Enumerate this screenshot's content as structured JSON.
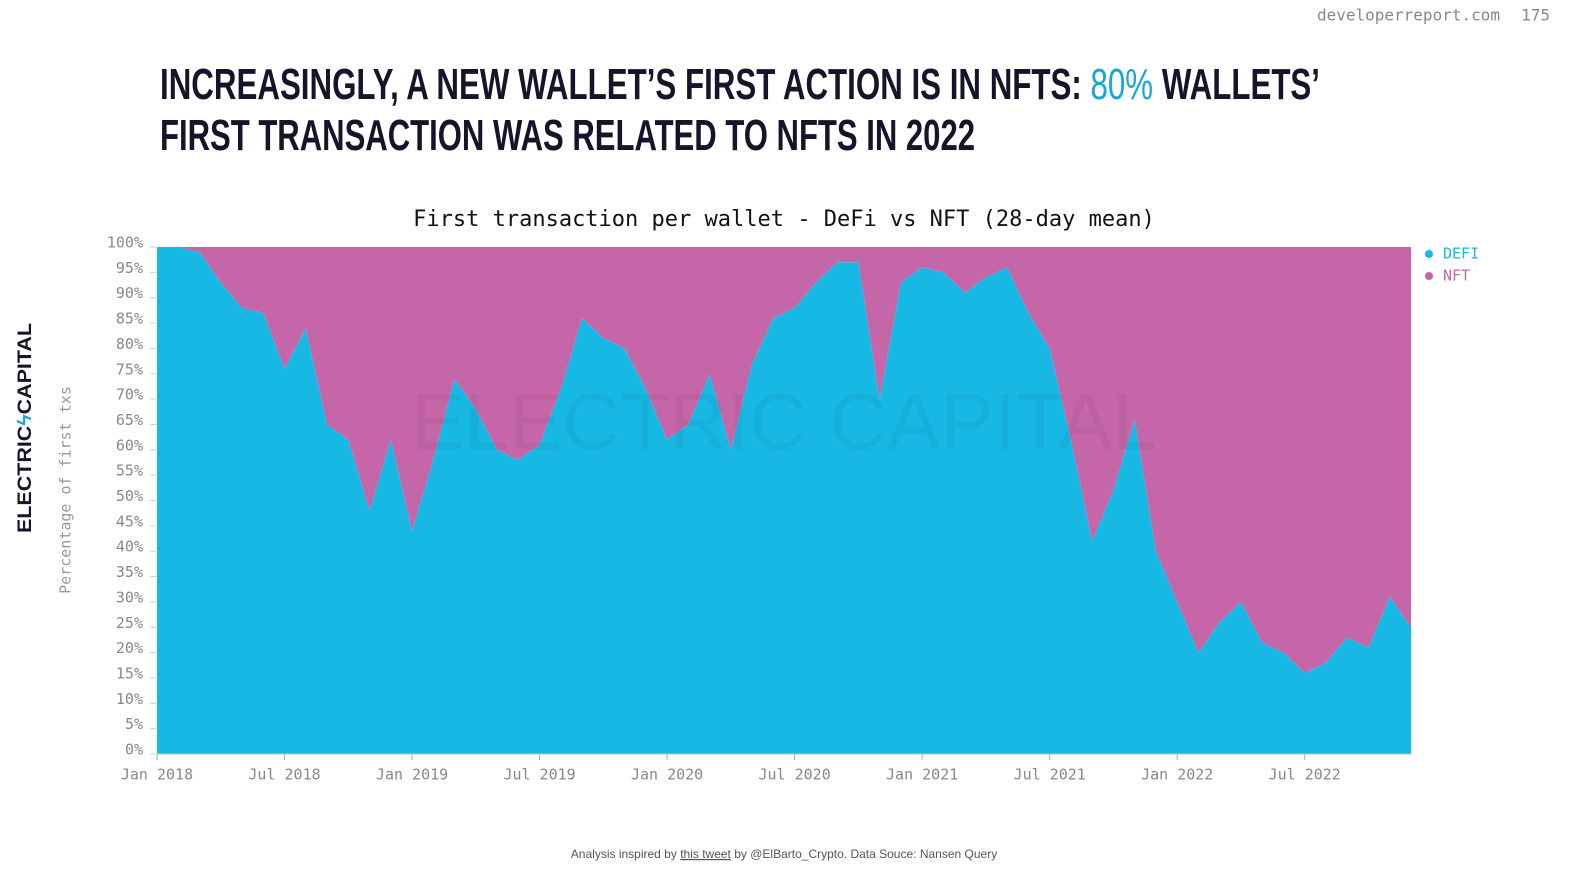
{
  "header": {
    "site": "developerreport.com",
    "page": "175"
  },
  "headline": {
    "line1": [
      "INCREASINGLY, A NEW WALLET’S FIRST ACTION IS IN NFTS: ",
      "80%",
      " WALLETS’"
    ],
    "line2": "FIRST TRANSACTION WAS RELATED TO NFTS IN 2022"
  },
  "logo": [
    "ELECTRIC",
    "CAPITAL"
  ],
  "watermark": "ELECTRIC CAPITAL",
  "footer": {
    "before": "Analysis inspired by ",
    "link": "this tweet",
    "after": " by @ElBarto_Crypto. Data Souce: Nansen Query"
  },
  "chart_data": {
    "type": "stacked_area",
    "title": "First transaction per wallet - DeFi vs NFT (28-day mean)",
    "y_label": "Percentage of first txs",
    "x": [
      "2018-01",
      "2018-02",
      "2018-03",
      "2018-04",
      "2018-05",
      "2018-06",
      "2018-07",
      "2018-08",
      "2018-09",
      "2018-10",
      "2018-11",
      "2018-12",
      "2019-01",
      "2019-02",
      "2019-03",
      "2019-04",
      "2019-05",
      "2019-06",
      "2019-07",
      "2019-08",
      "2019-09",
      "2019-10",
      "2019-11",
      "2019-12",
      "2020-01",
      "2020-02",
      "2020-03",
      "2020-04",
      "2020-05",
      "2020-06",
      "2020-07",
      "2020-08",
      "2020-09",
      "2020-10",
      "2020-11",
      "2020-12",
      "2021-01",
      "2021-02",
      "2021-03",
      "2021-04",
      "2021-05",
      "2021-06",
      "2021-07",
      "2021-08",
      "2021-09",
      "2021-10",
      "2021-11",
      "2021-12",
      "2022-01",
      "2022-02",
      "2022-03",
      "2022-04",
      "2022-05",
      "2022-06",
      "2022-07",
      "2022-08",
      "2022-09",
      "2022-10",
      "2022-11",
      "2022-12"
    ],
    "series": [
      {
        "name": "DEFI",
        "color": "#17b8e4",
        "values": [
          100,
          100,
          99,
          93,
          88,
          87,
          76,
          84,
          65,
          62,
          48,
          62,
          44,
          58,
          74,
          68,
          60,
          58,
          61,
          72,
          86,
          82,
          80,
          72,
          62,
          65,
          75,
          60,
          77,
          86,
          88,
          93,
          97,
          97,
          70,
          93,
          96,
          95,
          91,
          94,
          96,
          87,
          80,
          62,
          42,
          52,
          66,
          40,
          30,
          20,
          26,
          30,
          22,
          20,
          16,
          18,
          23,
          21,
          31,
          25
        ]
      },
      {
        "name": "NFT",
        "color": "#c466a8",
        "values": [
          0,
          0,
          1,
          7,
          12,
          13,
          24,
          16,
          35,
          38,
          52,
          38,
          56,
          42,
          26,
          32,
          40,
          42,
          39,
          28,
          14,
          18,
          20,
          28,
          38,
          35,
          25,
          40,
          23,
          14,
          12,
          7,
          3,
          3,
          30,
          7,
          4,
          5,
          9,
          6,
          4,
          13,
          20,
          38,
          58,
          48,
          34,
          60,
          70,
          80,
          74,
          70,
          78,
          80,
          84,
          82,
          77,
          79,
          69,
          75
        ]
      }
    ],
    "xlim": [
      "2018-01",
      "2022-12"
    ],
    "xticks": [
      {
        "value": "2018-01",
        "label": "Jan 2018"
      },
      {
        "value": "2018-07",
        "label": "Jul 2018"
      },
      {
        "value": "2019-01",
        "label": "Jan 2019"
      },
      {
        "value": "2019-07",
        "label": "Jul 2019"
      },
      {
        "value": "2020-01",
        "label": "Jan 2020"
      },
      {
        "value": "2020-07",
        "label": "Jul 2020"
      },
      {
        "value": "2021-01",
        "label": "Jan 2021"
      },
      {
        "value": "2021-07",
        "label": "Jul 2021"
      },
      {
        "value": "2022-01",
        "label": "Jan 2022"
      },
      {
        "value": "2022-07",
        "label": "Jul 2022"
      }
    ],
    "ylim": [
      0,
      100
    ],
    "yticks": [
      {
        "value": 0,
        "label": "0%"
      },
      {
        "value": 5,
        "label": "5%"
      },
      {
        "value": 10,
        "label": "10%"
      },
      {
        "value": 15,
        "label": "15%"
      },
      {
        "value": 20,
        "label": "20%"
      },
      {
        "value": 25,
        "label": "25%"
      },
      {
        "value": 30,
        "label": "30%"
      },
      {
        "value": 35,
        "label": "35%"
      },
      {
        "value": 40,
        "label": "40%"
      },
      {
        "value": 45,
        "label": "45%"
      },
      {
        "value": 50,
        "label": "50%"
      },
      {
        "value": 55,
        "label": "55%"
      },
      {
        "value": 60,
        "label": "60%"
      },
      {
        "value": 65,
        "label": "65%"
      },
      {
        "value": 70,
        "label": "70%"
      },
      {
        "value": 75,
        "label": "75%"
      },
      {
        "value": 80,
        "label": "80%"
      },
      {
        "value": 85,
        "label": "85%"
      },
      {
        "value": 90,
        "label": "90%"
      },
      {
        "value": 95,
        "label": "95%"
      },
      {
        "value": 100,
        "label": "100%"
      }
    ],
    "legend": "top-right"
  }
}
